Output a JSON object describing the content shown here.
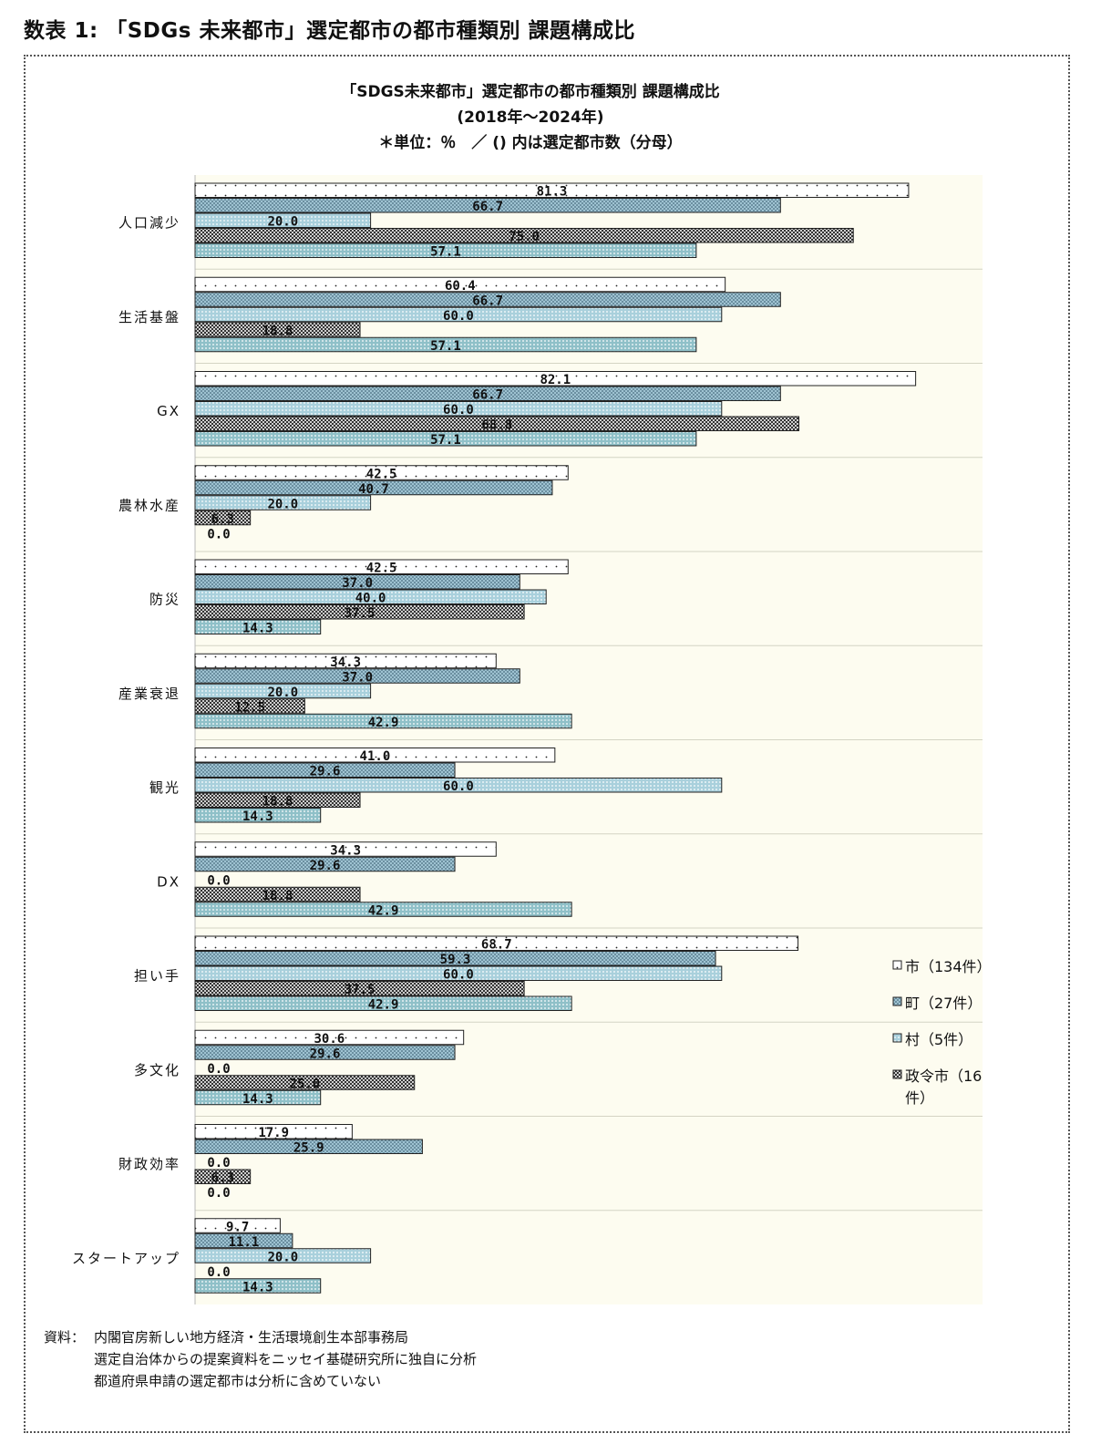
{
  "header": {
    "title": "数表 1: 「SDGs 未来都市」選定都市の都市種類別 課題構成比"
  },
  "chart_data": {
    "type": "bar",
    "orientation": "horizontal",
    "title": "「SDGS未来都市」選定都市の都市種類別 課題構成比",
    "subtitle": "(2018年～2024年)",
    "note": "＊単位：％　／ () 内は選定都市数（分母）",
    "categories": [
      "人口減少",
      "生活基盤",
      "GX",
      "農林水産",
      "防災",
      "産業衰退",
      "観光",
      "DX",
      "担い手",
      "多文化",
      "財政効率",
      "スタートアップ"
    ],
    "series": [
      {
        "name": "市（134件）",
        "pattern": "dots-white",
        "values": [
          81.3,
          60.4,
          82.1,
          42.5,
          42.5,
          34.3,
          41.0,
          34.3,
          68.7,
          30.6,
          17.9,
          9.7
        ]
      },
      {
        "name": "町（27件）",
        "pattern": "checker-blue",
        "values": [
          66.7,
          66.7,
          66.7,
          40.7,
          37.0,
          37.0,
          29.6,
          29.6,
          59.3,
          29.6,
          25.9,
          11.1
        ]
      },
      {
        "name": "村（5件）",
        "pattern": "dots-blue",
        "values": [
          20.0,
          60.0,
          60.0,
          20.0,
          40.0,
          20.0,
          60.0,
          0.0,
          60.0,
          0.0,
          0.0,
          20.0
        ]
      },
      {
        "name": "政令市（16件）",
        "pattern": "checker-dark",
        "values": [
          75.0,
          18.8,
          68.8,
          6.3,
          37.5,
          12.5,
          18.8,
          18.8,
          37.5,
          25.0,
          6.3,
          0.0
        ]
      },
      {
        "name": "",
        "pattern": "dots-teal",
        "values": [
          57.1,
          57.1,
          57.1,
          0.0,
          14.3,
          42.9,
          14.3,
          42.9,
          42.9,
          14.3,
          0.0,
          14.3
        ]
      }
    ],
    "xlim": [
      0,
      90
    ],
    "legend_position": "right"
  },
  "legend_lines": {
    "s0": [
      "市（134件）"
    ],
    "s1": [
      "町（27件）"
    ],
    "s2": [
      "村（5件）"
    ],
    "s3": [
      "政令市（16",
      "件）"
    ]
  },
  "colors": {
    "plot_bg": "#fdfcf0",
    "dots_white_bg": "#ffffff",
    "checker_blue": "#9fc3d2",
    "dots_blue_bg": "#a9d0dc",
    "checker_dark": "#6f6f6f",
    "dots_teal_bg": "#8fc0c8"
  },
  "footer": {
    "source_label": "資料：",
    "source_lines": [
      "内閣官房新しい地方経済・生活環境創生本部事務局",
      "選定自治体からの提案資料をニッセイ基礎研究所に独自に分析",
      "都道府県申請の選定都市は分析に含めていない"
    ]
  }
}
